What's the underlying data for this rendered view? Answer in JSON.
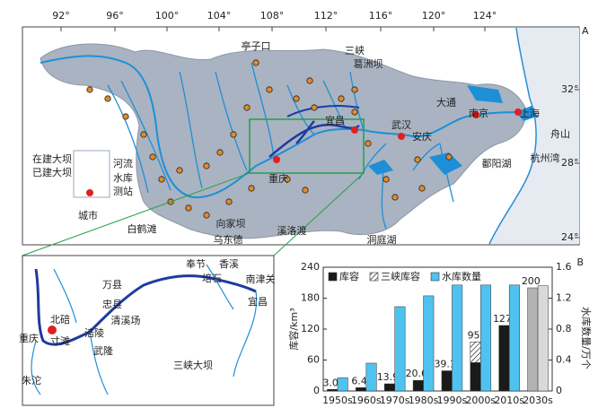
{
  "map": {
    "panel_label": "A",
    "lon_labels": [
      "92°",
      "96°",
      "100°",
      "104°",
      "108°",
      "112°",
      "116°",
      "120°",
      "124°"
    ],
    "lat_labels": [
      "32°",
      "28°",
      "24°"
    ],
    "places": [
      "亭子口",
      "三峡",
      "葛洲坝",
      "宜昌",
      "武汉",
      "大通",
      "南京",
      "上海",
      "舟山",
      "安庆",
      "杭州湾",
      "鄱阳湖",
      "重庆",
      "白鹤滩",
      "向家坝",
      "乌东德",
      "溪洛渡",
      "洞庭湖"
    ],
    "legend": [
      "在建大坝",
      "已建大坝",
      "河流",
      "水库",
      "测站",
      "城市"
    ]
  },
  "inset": {
    "places": [
      "北碚",
      "重庆",
      "寸滩",
      "朱沱",
      "万县",
      "忠县",
      "清溪场",
      "涪陵",
      "武隆",
      "奉节",
      "香溪",
      "培石",
      "南津关",
      "宜昌",
      "三峡大坝"
    ]
  },
  "chart_data": {
    "type": "bar",
    "panel_label": "B",
    "categories": [
      "1950s",
      "1960s",
      "1970s",
      "1980s",
      "1990s",
      "2000s",
      "2010s",
      "2030s"
    ],
    "ylabel": "库容/km³",
    "y2label": "水库数量/万个",
    "ylim": [
      0,
      240
    ],
    "yticks": [
      0,
      60,
      120,
      180,
      240
    ],
    "y2lim": [
      0,
      1.6
    ],
    "y2ticks": [
      0,
      0.4,
      0.8,
      1.2,
      1.6
    ],
    "series": [
      {
        "name": "库容",
        "color": "#1a1a1a",
        "point_colors": [
          "#1a1a1a",
          "#1a1a1a",
          "#1a1a1a",
          "#1a1a1a",
          "#1a1a1a",
          "#1a1a1a",
          "#1a1a1a",
          "#b3b3b3"
        ],
        "values": [
          3.0,
          6.4,
          13.9,
          20.6,
          39.1,
          95,
          127,
          200
        ],
        "value_labels": [
          "3.0",
          "6.4",
          "13.9",
          "20.6",
          "39.1",
          "95",
          "127",
          "200"
        ]
      },
      {
        "name": "三峡库容",
        "color": "#ffffff",
        "values": [
          null,
          null,
          null,
          null,
          null,
          40,
          null,
          null
        ]
      },
      {
        "name": "水库数量",
        "color": "#4fc3f0",
        "axis": "y2",
        "point_colors": [
          "#4fc3f0",
          "#4fc3f0",
          "#4fc3f0",
          "#4fc3f0",
          "#4fc3f0",
          "#4fc3f0",
          "#4fc3f0",
          "#d9d9d9"
        ],
        "values": [
          0.17,
          0.36,
          1.09,
          1.23,
          1.37,
          1.37,
          1.37,
          1.36
        ]
      }
    ]
  }
}
